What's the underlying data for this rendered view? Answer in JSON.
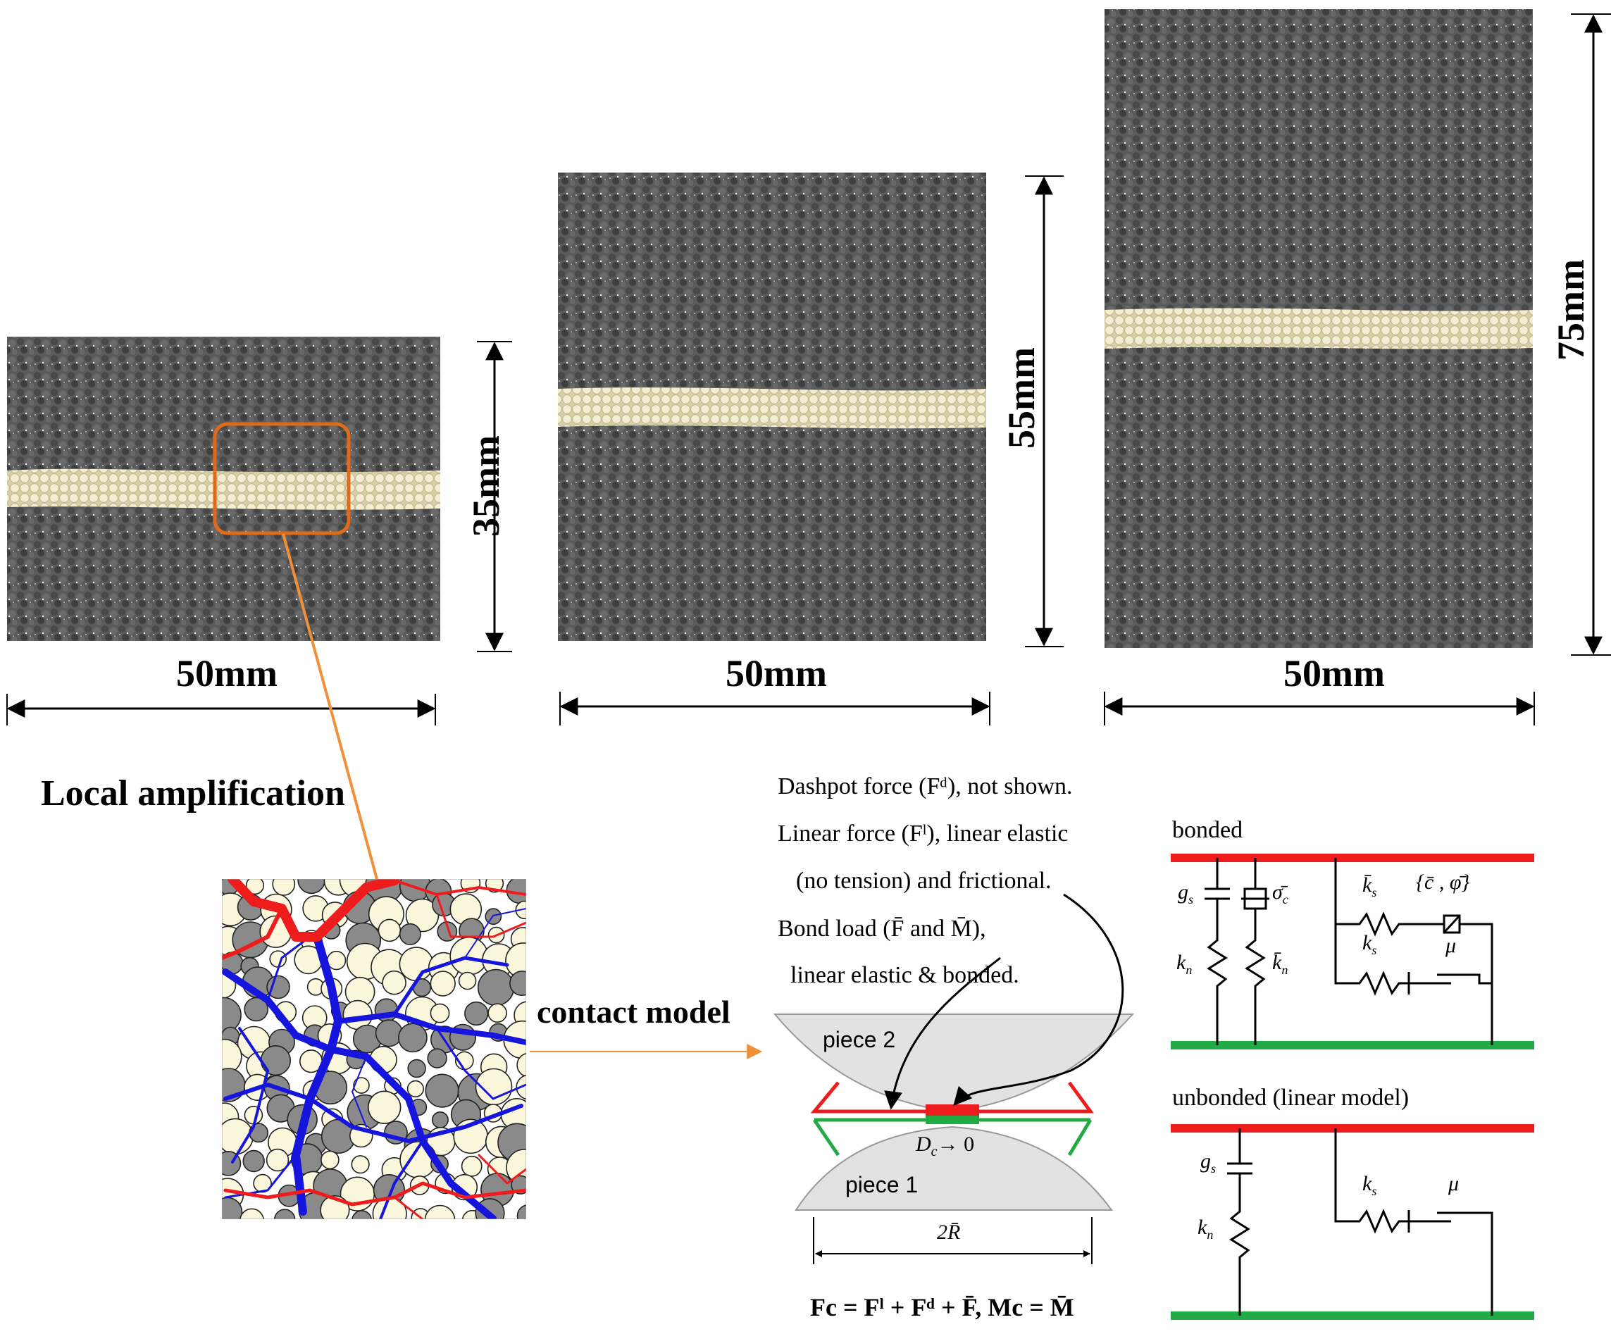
{
  "specimens": [
    {
      "id": "short",
      "width_label": "50mm",
      "height_label": "35mm"
    },
    {
      "id": "medium",
      "width_label": "50mm",
      "height_label": "55mm"
    },
    {
      "id": "tall",
      "width_label": "50mm",
      "height_label": "75mm"
    }
  ],
  "labels": {
    "local_amplification": "Local amplification",
    "contact_model": "contact model",
    "dashpot": "Dashpot force (Fᵈ), not shown.",
    "linear_force_1": "Linear force (Fˡ), linear elastic",
    "linear_force_2": "(no tension) and frictional.",
    "bond_load_1": "Bond load (F̄ and M̄),",
    "bond_load_2": "linear elastic & bonded.",
    "piece_2": "piece 2",
    "piece_1": "piece 1",
    "gap": "D",
    "gap_sub": "c",
    "gap_tail": "→ 0",
    "radius": "2R̄",
    "equation": "Fc = Fˡ + Fᵈ + F̄,  Mc = M̄",
    "bonded": "bonded",
    "unbonded": "unbonded (linear model)"
  },
  "symbols": {
    "gs": "g",
    "gs_sub": "s",
    "kn": "k",
    "kn_sub": "n",
    "ks": "k",
    "ks_sub": "s",
    "mu": "μ",
    "sigma_c": "σ̄",
    "sigma_sub": "c",
    "kn_bar": "k̄",
    "ks_bar": "k̄",
    "c_phi": "{c̄ , φ̄}"
  },
  "colors": {
    "matrix": "#555555",
    "band": "#ede7c8",
    "highlight": "#e06a1a",
    "connector": "#f0903a",
    "red": "#ee1c1c",
    "green": "#22aa44",
    "blue": "#1515dd",
    "piece": "#e2e2e2"
  }
}
